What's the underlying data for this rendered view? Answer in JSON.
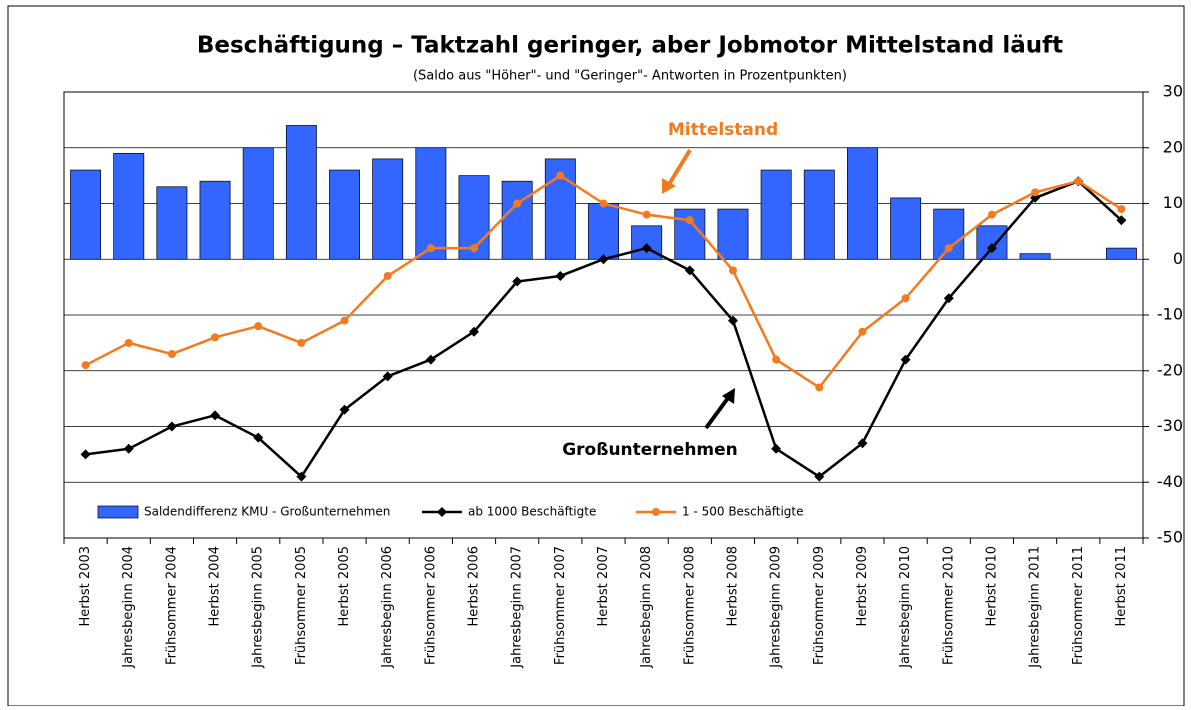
{
  "chart_data": {
    "type": "bar_line",
    "title": "Beschäftigung – Taktzahl geringer, aber Jobmotor Mittelstand läuft",
    "subtitle": "(Saldo aus \"Höher\"- und \"Geringer\"- Antworten in Prozentpunkten)",
    "annotations": [
      {
        "text": "Mittelstand",
        "color": "#f47a1f"
      },
      {
        "text": "Großunternehmen",
        "color": "#000000"
      }
    ],
    "categories": [
      "Herbst 2003",
      "Jahresbeginn 2004",
      "Frühsommer 2004",
      "Herbst 2004",
      "Jahresbeginn 2005",
      "Frühsommer 2005",
      "Herbst 2005",
      "Jahresbeginn 2006",
      "Frühsommer 2006",
      "Herbst 2006",
      "Jahresbeginn 2007",
      "Frühsommer 2007",
      "Herbst 2007",
      "Jahresbeginn 2008",
      "Frühsommer 2008",
      "Herbst 2008",
      "Jahresbeginn 2009",
      "Frühsommer 2009",
      "Herbst 2009",
      "Jahresbeginn 2010",
      "Frühsommer 2010",
      "Herbst 2010",
      "Jahresbeginn 2011",
      "Frühsommer 2011",
      "Herbst 2011"
    ],
    "series": [
      {
        "name": "Saldendifferenz KMU - Großunternehmen",
        "type": "bar",
        "color": "#3366ff",
        "values": [
          16,
          19,
          13,
          14,
          20,
          24,
          16,
          18,
          20,
          15,
          14,
          18,
          10,
          6,
          9,
          9,
          16,
          16,
          20,
          11,
          9,
          6,
          1,
          0,
          2
        ]
      },
      {
        "name": "ab 1000 Beschäftigte",
        "type": "line",
        "color": "#000000",
        "values": [
          -35,
          -34,
          -30,
          -28,
          -32,
          -39,
          -27,
          -21,
          -18,
          -13,
          -4,
          -3,
          0,
          2,
          -2,
          -11,
          -34,
          -39,
          -33,
          -18,
          -7,
          2,
          11,
          14,
          7
        ]
      },
      {
        "name": "1 - 500 Beschäftigte",
        "type": "line",
        "color": "#f47a1f",
        "values": [
          -19,
          -15,
          -17,
          -14,
          -12,
          -15,
          -11,
          -3,
          2,
          2,
          10,
          15,
          10,
          8,
          7,
          -2,
          -18,
          -23,
          -13,
          -7,
          2,
          8,
          12,
          14,
          9
        ]
      }
    ],
    "ylim": [
      -50,
      30
    ],
    "yticks": [
      -50,
      -40,
      -30,
      -20,
      -10,
      0,
      10,
      20,
      30
    ],
    "grid": true,
    "legend": "bottom-left"
  }
}
